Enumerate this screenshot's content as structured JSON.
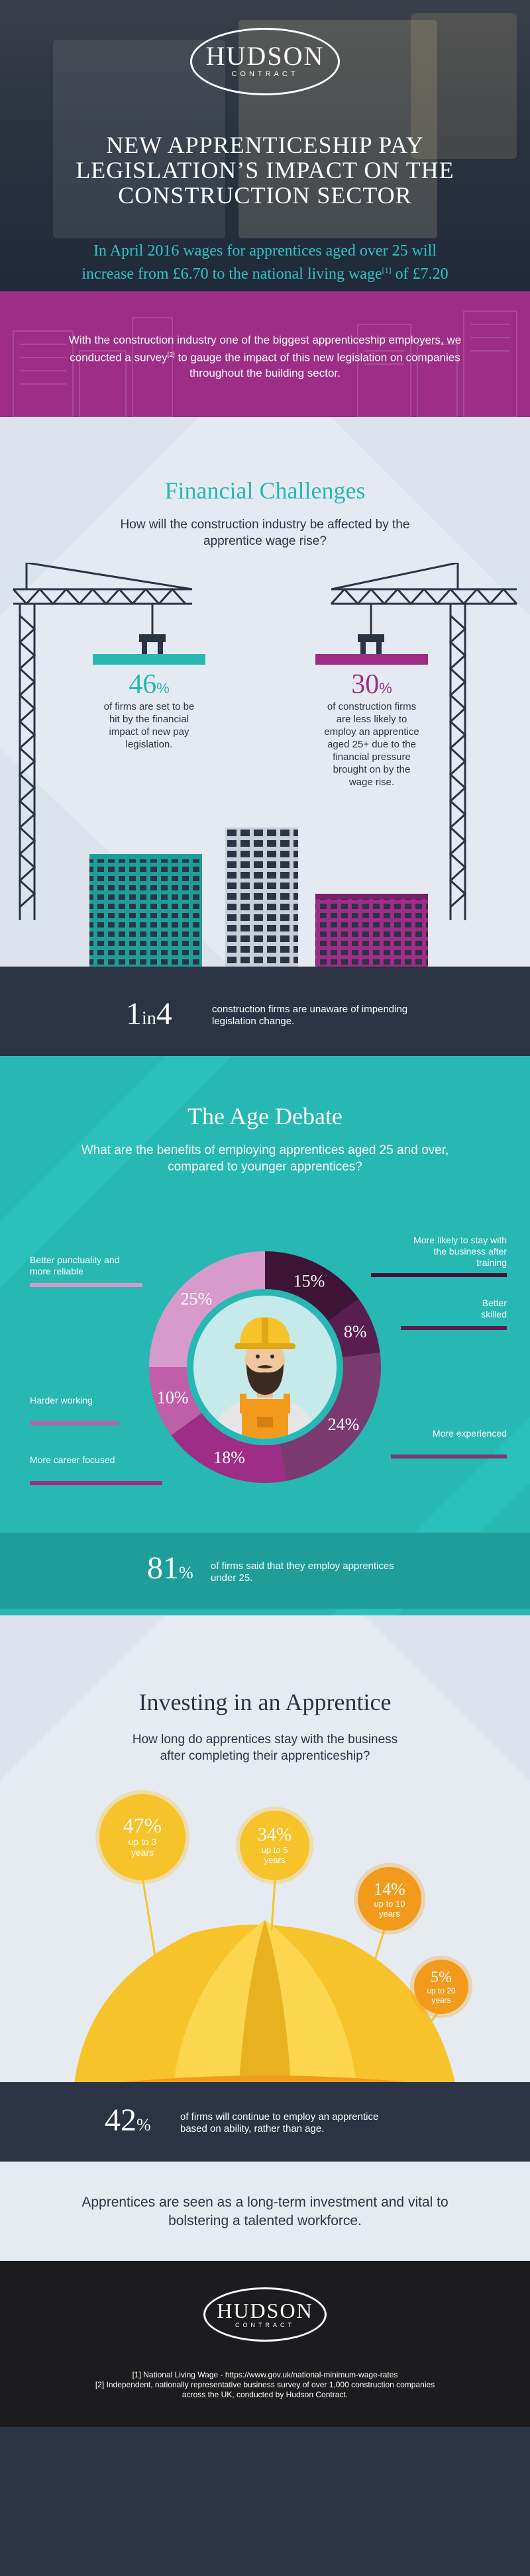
{
  "brand": {
    "name": "HUDSON",
    "tagline": "CONTRACT"
  },
  "hero": {
    "title_lines": [
      "NEW APPRENTICESHIP PAY",
      "LEGISLATION’S IMPACT ON THE",
      "CONSTRUCTION SECTOR"
    ],
    "subtitle_a": "In April 2016 wages for apprentices aged over 25 will",
    "subtitle_b": "increase from £6.70 to the national living wage",
    "subtitle_sup": "[1]",
    "subtitle_c": " of £7.20"
  },
  "intro": {
    "text_a": "With the construction industry one of the biggest apprenticeship employers, we conducted a survey",
    "text_sup": "[2]",
    "text_b": " to gauge the impact of this new legislation on companies throughout the building sector."
  },
  "financial": {
    "title": "Financial Challenges",
    "question": "How will the construction industry be affected by the apprentice wage rise?",
    "stat1": {
      "value": "46",
      "unit": "%",
      "text": "of firms are set to be hit by the financial impact of new pay legislation."
    },
    "stat2": {
      "value": "30",
      "unit": "%",
      "text": "of construction firms are less likely to employ an apprentice aged 25+ due to the financial pressure brought on by the wage rise."
    }
  },
  "band1": {
    "num_a": "1",
    "num_mid": "in",
    "num_b": "4",
    "text": "construction firms are unaware of impending legislation change."
  },
  "age": {
    "title": "The Age Debate",
    "question": "What are the benefits of employing apprentices aged 25 and over, compared to younger apprentices?",
    "segments": [
      {
        "label": "More likely to stay with the business after training",
        "value": "15%",
        "color": "#3d1436"
      },
      {
        "label": "Better skilled",
        "value": "8%",
        "color": "#5a1d50"
      },
      {
        "label": "More experienced",
        "value": "24%",
        "color": "#7b3a6f"
      },
      {
        "label": "More career focused",
        "value": "18%",
        "color": "#9d2d87"
      },
      {
        "label": "Harder working",
        "value": "10%",
        "color": "#c05fa8"
      },
      {
        "label": "Better punctuality and more reliable",
        "value": "25%",
        "color": "#d79bcb"
      }
    ]
  },
  "band2": {
    "num": "81",
    "unit": "%",
    "text": "of firms said that they employ apprentices under 25."
  },
  "invest": {
    "title": "Investing in an Apprentice",
    "question": "How long do apprentices stay with the business after completing their apprenticeship?",
    "bubbles": [
      {
        "value": "47%",
        "text": "up to 3 years"
      },
      {
        "value": "34%",
        "text": "up to 5 years"
      },
      {
        "value": "14%",
        "text": "up to 10 years"
      },
      {
        "value": "5%",
        "text": "up to 20 years"
      }
    ]
  },
  "band3": {
    "num": "42",
    "unit": "%",
    "text": "of firms will continue to employ an apprentice based on ability, rather than age."
  },
  "closing": {
    "text": "Apprentices are seen as a long-term investment and vital to bolstering a talented workforce."
  },
  "footer": {
    "ref1": "[1] National Living Wage - https://www.gov.uk/national-minimum-wage-rates",
    "ref2": "[2] Independent, nationally representative business survey of over 1,000 construction companies across the UK, conducted by Hudson Contract."
  },
  "colors": {
    "teal": "#27b8b3",
    "magenta": "#9d2d87",
    "navy": "#2b3445",
    "yellow": "#f6c32a",
    "orange": "#f29a1c"
  }
}
